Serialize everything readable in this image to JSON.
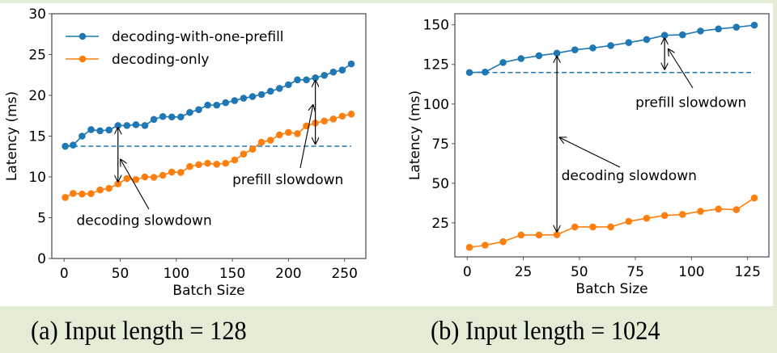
{
  "colors": {
    "series1": "#1f77b4",
    "series2": "#ff7f0e",
    "axis": "#555555",
    "background": "#e3ecd5"
  },
  "captions": {
    "a": "(a) Input length = 128",
    "b": "(b) Input length = 1024"
  },
  "chart_data": [
    {
      "type": "line",
      "title": "",
      "xlabel": "Batch Size",
      "ylabel": "Latency (ms)",
      "xlim": [
        -11,
        269
      ],
      "ylim": [
        0,
        30
      ],
      "xticks": [
        0,
        50,
        100,
        150,
        200,
        250
      ],
      "yticks": [
        0,
        5,
        10,
        15,
        20,
        25,
        30
      ],
      "grid": false,
      "legend": {
        "placement": "top-left",
        "frame": false
      },
      "x": [
        1,
        8,
        16,
        24,
        32,
        40,
        48,
        56,
        64,
        72,
        80,
        88,
        96,
        104,
        112,
        120,
        128,
        136,
        144,
        152,
        160,
        168,
        176,
        184,
        192,
        200,
        208,
        216,
        224,
        232,
        240,
        248,
        256
      ],
      "series": [
        {
          "name": "decoding-with-one-prefill",
          "color": "#1f77b4",
          "values": [
            13.76,
            13.9,
            15.0,
            15.8,
            15.65,
            15.75,
            16.3,
            16.3,
            16.4,
            16.3,
            17.05,
            17.4,
            17.35,
            17.35,
            17.9,
            18.25,
            18.8,
            18.8,
            19.1,
            19.35,
            19.65,
            19.85,
            20.1,
            20.5,
            20.85,
            21.3,
            21.9,
            21.9,
            22.15,
            22.45,
            22.85,
            23.1,
            23.85
          ]
        },
        {
          "name": "decoding-only",
          "color": "#ff7f0e",
          "values": [
            7.48,
            7.98,
            7.9,
            7.95,
            8.4,
            8.6,
            9.15,
            9.8,
            9.67,
            10.0,
            9.95,
            10.2,
            10.6,
            10.55,
            11.27,
            11.5,
            11.67,
            11.55,
            11.67,
            12.07,
            12.8,
            13.4,
            14.25,
            14.5,
            15.15,
            15.45,
            15.3,
            16.25,
            16.6,
            16.85,
            17.1,
            17.45,
            17.7
          ]
        }
      ],
      "reference_line": {
        "y": 13.76,
        "from_x": 1,
        "to_x": 256,
        "style": "dashed",
        "color": "#1f77b4"
      },
      "annotations": [
        {
          "text": "decoding slowdown",
          "double_arrow": {
            "x": 48,
            "y_top": 16.3,
            "y_bottom": 9.15
          },
          "pointer_to": {
            "x": 50,
            "y": 12.2
          },
          "text_anchor": {
            "x": 11,
            "y": 4.1
          }
        },
        {
          "text": "prefill slowdown",
          "double_arrow": {
            "x": 224,
            "y_top": 22.1,
            "y_bottom": 13.76
          },
          "pointer_to": {
            "x": 222,
            "y": 18.9
          },
          "text_anchor": {
            "x": 150,
            "y": 9.1
          }
        }
      ]
    },
    {
      "type": "line",
      "title": "",
      "xlabel": "Batch Size",
      "ylabel": "Latency (ms)",
      "xlim": [
        -5.5,
        134.5
      ],
      "ylim": [
        3.5,
        157
      ],
      "xticks": [
        0,
        25,
        50,
        75,
        100,
        125
      ],
      "yticks": [
        25,
        50,
        75,
        100,
        125,
        150
      ],
      "grid": false,
      "x": [
        1,
        8,
        16,
        24,
        32,
        40,
        48,
        56,
        64,
        72,
        80,
        88,
        96,
        104,
        112,
        120,
        128
      ],
      "series": [
        {
          "name": "decoding-with-one-prefill",
          "color": "#1f77b4",
          "values": [
            119.9,
            120.2,
            126.2,
            128.7,
            130.5,
            132.1,
            134.2,
            135.4,
            136.9,
            138.8,
            140.7,
            143.4,
            143.7,
            146.1,
            147.4,
            148.5,
            149.8
          ]
        },
        {
          "name": "decoding-only",
          "color": "#ff7f0e",
          "values": [
            9.5,
            10.9,
            13.1,
            17.3,
            17.3,
            17.5,
            22.4,
            22.4,
            22.4,
            25.9,
            27.9,
            29.6,
            30.3,
            32.3,
            33.7,
            33.3,
            40.7
          ]
        }
      ],
      "reference_line": {
        "y": 119.9,
        "from_x": 1,
        "to_x": 128,
        "style": "dashed",
        "color": "#1f77b4"
      },
      "annotations": [
        {
          "text": "prefill slowdown",
          "double_arrow": {
            "x": 88,
            "y_top": 143.0,
            "y_bottom": 120.5
          },
          "pointer_to": {
            "x": 89.5,
            "y": 135
          },
          "text_anchor": {
            "x": 75,
            "y": 98
          }
        },
        {
          "text": "decoding slowdown",
          "double_arrow": {
            "x": 40,
            "y_top": 131.5,
            "y_bottom": 18.0
          },
          "pointer_to": {
            "x": 41,
            "y": 79
          },
          "text_anchor": {
            "x": 42,
            "y": 52
          }
        }
      ]
    }
  ]
}
